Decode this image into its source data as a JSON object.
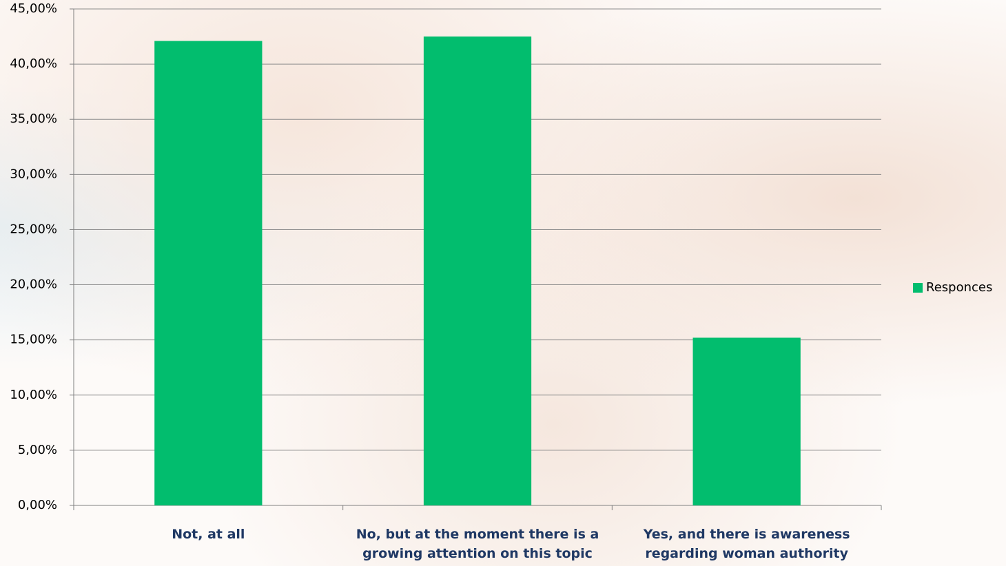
{
  "chart_data": {
    "type": "bar",
    "categories": [
      "Not, at all",
      "No, but at the moment there is a growing attention on this topic",
      "Yes, and there is awareness regarding woman authority"
    ],
    "series": [
      {
        "name": "Responces",
        "color": "#02bd6e",
        "values": [
          42.1,
          42.5,
          15.2
        ]
      }
    ],
    "ylim": [
      0,
      45
    ],
    "yticks": [
      {
        "value": 0,
        "label": "0,00%"
      },
      {
        "value": 5,
        "label": "5,00%"
      },
      {
        "value": 10,
        "label": "10,00%"
      },
      {
        "value": 15,
        "label": "15,00%"
      },
      {
        "value": 20,
        "label": "20,00%"
      },
      {
        "value": 25,
        "label": "25,00%"
      },
      {
        "value": 30,
        "label": "30,00%"
      },
      {
        "value": 35,
        "label": "35,00%"
      },
      {
        "value": 40,
        "label": "40,00%"
      },
      {
        "value": 45,
        "label": "45,00%"
      }
    ],
    "grid": true,
    "legend": "right"
  }
}
